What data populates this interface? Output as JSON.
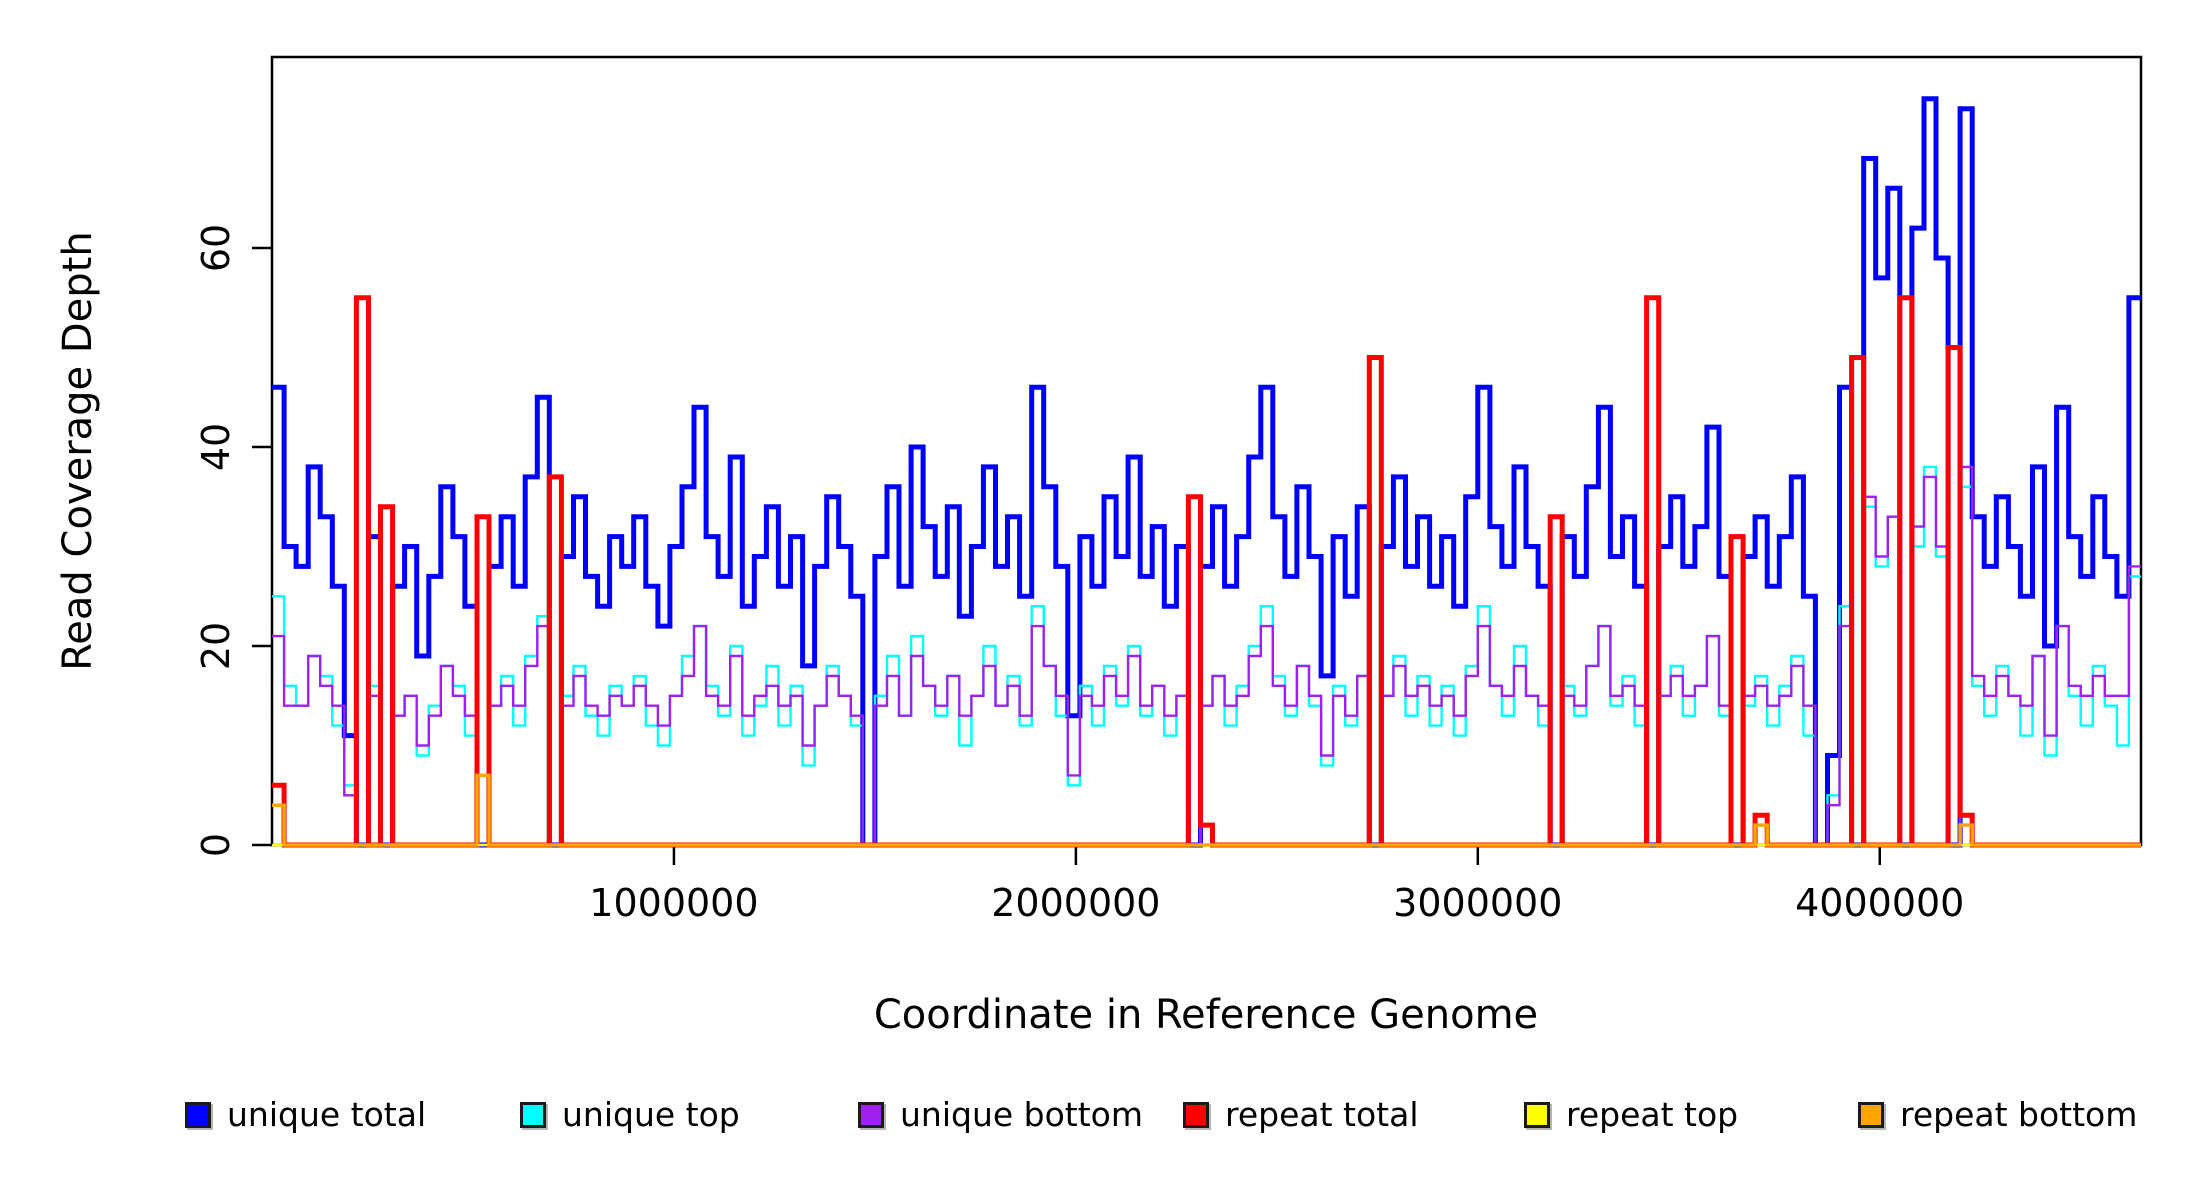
{
  "chart_data": {
    "type": "line",
    "subtype": "step-coverage-plot",
    "title": "",
    "xlabel": "Coordinate in Reference Genome",
    "ylabel": "Read Coverage Depth",
    "xlim": [
      0,
      4650000
    ],
    "ylim": [
      0,
      79.2
    ],
    "grid": "off",
    "legend_position": "bottom",
    "frame_color": "#000000",
    "background": "#ffffff",
    "ticks_x": [
      1000000,
      2000000,
      3000000,
      4000000
    ],
    "ticks_x_labels": [
      "1000000",
      "2000000",
      "3000000",
      "4000000"
    ],
    "ticks_y": [
      0,
      20,
      40,
      60
    ],
    "ticks_y_labels": [
      "0",
      "20",
      "40",
      "60"
    ],
    "x_start": 0,
    "x_step": 30000,
    "series": [
      {
        "name": "unique total",
        "color": "#0000FF",
        "line_width": 5,
        "values": [
          46,
          30,
          28,
          38,
          33,
          26,
          11,
          0,
          31,
          0,
          26,
          30,
          19,
          27,
          36,
          31,
          24,
          0,
          28,
          33,
          26,
          37,
          45,
          0,
          29,
          35,
          27,
          24,
          31,
          28,
          33,
          26,
          22,
          30,
          36,
          44,
          31,
          27,
          39,
          24,
          29,
          34,
          26,
          31,
          18,
          28,
          35,
          30,
          25,
          0,
          29,
          36,
          26,
          40,
          32,
          27,
          34,
          23,
          30,
          38,
          28,
          33,
          25,
          46,
          36,
          28,
          13,
          31,
          26,
          35,
          29,
          39,
          27,
          32,
          24,
          30,
          0,
          28,
          34,
          26,
          31,
          39,
          46,
          33,
          27,
          36,
          29,
          17,
          31,
          25,
          34,
          0,
          30,
          37,
          28,
          33,
          26,
          31,
          24,
          35,
          46,
          32,
          28,
          38,
          30,
          26,
          0,
          31,
          27,
          36,
          44,
          29,
          33,
          26,
          0,
          30,
          35,
          28,
          32,
          42,
          27,
          0,
          29,
          33,
          26,
          31,
          37,
          25,
          0,
          9,
          46,
          0,
          69,
          57,
          66,
          0,
          62,
          75,
          59,
          0,
          74,
          33,
          28,
          35,
          30,
          25,
          38,
          20,
          44,
          31,
          27,
          35,
          29,
          25,
          55
        ]
      },
      {
        "name": "unique top",
        "color": "#00FFFF",
        "line_width": 2.4,
        "values": [
          25,
          16,
          14,
          19,
          17,
          12,
          6,
          0,
          16,
          0,
          13,
          15,
          9,
          14,
          18,
          16,
          11,
          0,
          14,
          17,
          12,
          19,
          23,
          0,
          15,
          18,
          13,
          11,
          16,
          14,
          17,
          12,
          10,
          15,
          19,
          22,
          16,
          13,
          20,
          11,
          14,
          18,
          12,
          16,
          8,
          14,
          18,
          15,
          12,
          0,
          15,
          19,
          13,
          21,
          16,
          13,
          17,
          10,
          15,
          20,
          14,
          17,
          12,
          24,
          18,
          13,
          6,
          16,
          12,
          18,
          14,
          20,
          13,
          16,
          11,
          15,
          0,
          14,
          17,
          12,
          16,
          20,
          24,
          17,
          13,
          18,
          14,
          8,
          16,
          12,
          17,
          0,
          15,
          19,
          13,
          17,
          12,
          16,
          11,
          18,
          24,
          16,
          13,
          20,
          15,
          12,
          0,
          16,
          13,
          18,
          22,
          14,
          17,
          12,
          0,
          15,
          18,
          13,
          16,
          21,
          13,
          0,
          14,
          17,
          12,
          16,
          19,
          11,
          0,
          5,
          24,
          0,
          34,
          28,
          33,
          0,
          30,
          38,
          29,
          0,
          36,
          16,
          13,
          18,
          15,
          11,
          19,
          9,
          22,
          15,
          12,
          18,
          14,
          10,
          27
        ]
      },
      {
        "name": "unique bottom",
        "color": "#A020F0",
        "line_width": 2.4,
        "values": [
          21,
          14,
          14,
          19,
          16,
          14,
          5,
          0,
          15,
          0,
          13,
          15,
          10,
          13,
          18,
          15,
          13,
          0,
          14,
          16,
          14,
          18,
          22,
          0,
          14,
          17,
          14,
          13,
          15,
          14,
          16,
          14,
          12,
          15,
          17,
          22,
          15,
          14,
          19,
          13,
          15,
          16,
          14,
          15,
          10,
          14,
          17,
          15,
          13,
          0,
          14,
          17,
          13,
          19,
          16,
          14,
          17,
          13,
          15,
          18,
          14,
          16,
          13,
          22,
          18,
          15,
          7,
          15,
          14,
          17,
          15,
          19,
          14,
          16,
          13,
          15,
          0,
          14,
          17,
          14,
          15,
          19,
          22,
          16,
          14,
          18,
          15,
          9,
          15,
          13,
          17,
          0,
          15,
          18,
          15,
          16,
          14,
          15,
          13,
          17,
          22,
          16,
          15,
          18,
          15,
          14,
          0,
          15,
          14,
          18,
          22,
          15,
          16,
          14,
          0,
          15,
          17,
          15,
          16,
          21,
          14,
          0,
          15,
          16,
          14,
          15,
          18,
          14,
          0,
          4,
          22,
          0,
          35,
          29,
          33,
          0,
          32,
          37,
          30,
          0,
          38,
          17,
          15,
          17,
          15,
          14,
          19,
          11,
          22,
          16,
          15,
          17,
          15,
          15,
          28
        ]
      },
      {
        "name": "repeat total",
        "color": "#FF0000",
        "line_width": 5,
        "values": [
          6,
          0,
          0,
          0,
          0,
          0,
          0,
          55,
          0,
          34,
          0,
          0,
          0,
          0,
          0,
          0,
          0,
          33,
          0,
          0,
          0,
          0,
          0,
          37,
          0,
          0,
          0,
          0,
          0,
          0,
          0,
          0,
          0,
          0,
          0,
          0,
          0,
          0,
          0,
          0,
          0,
          0,
          0,
          0,
          0,
          0,
          0,
          0,
          0,
          0,
          0,
          0,
          0,
          0,
          0,
          0,
          0,
          0,
          0,
          0,
          0,
          0,
          0,
          0,
          0,
          0,
          0,
          0,
          0,
          0,
          0,
          0,
          0,
          0,
          0,
          0,
          35,
          2,
          0,
          0,
          0,
          0,
          0,
          0,
          0,
          0,
          0,
          0,
          0,
          0,
          0,
          49,
          0,
          0,
          0,
          0,
          0,
          0,
          0,
          0,
          0,
          0,
          0,
          0,
          0,
          0,
          33,
          0,
          0,
          0,
          0,
          0,
          0,
          0,
          55,
          0,
          0,
          0,
          0,
          0,
          0,
          31,
          0,
          3,
          0,
          0,
          0,
          0,
          0,
          0,
          0,
          49,
          0,
          0,
          0,
          55,
          0,
          0,
          0,
          50,
          3,
          0,
          0,
          0,
          0,
          0,
          0,
          0,
          0,
          0,
          0,
          0,
          0,
          0,
          0
        ]
      },
      {
        "name": "repeat top",
        "color": "#FFFF00",
        "line_width": 2.4,
        "values": [
          0,
          0,
          0,
          0,
          0,
          0,
          0,
          0,
          0,
          0,
          0,
          0,
          0,
          0,
          0,
          0,
          0,
          0,
          0,
          0,
          0,
          0,
          0,
          0,
          0,
          0,
          0,
          0,
          0,
          0,
          0,
          0,
          0,
          0,
          0,
          0,
          0,
          0,
          0,
          0,
          0,
          0,
          0,
          0,
          0,
          0,
          0,
          0,
          0,
          0,
          0,
          0,
          0,
          0,
          0,
          0,
          0,
          0,
          0,
          0,
          0,
          0,
          0,
          0,
          0,
          0,
          0,
          0,
          0,
          0,
          0,
          0,
          0,
          0,
          0,
          0,
          0,
          0,
          0,
          0,
          0,
          0,
          0,
          0,
          0,
          0,
          0,
          0,
          0,
          0,
          0,
          0,
          0,
          0,
          0,
          0,
          0,
          0,
          0,
          0,
          0,
          0,
          0,
          0,
          0,
          0,
          0,
          0,
          0,
          0,
          0,
          0,
          0,
          0,
          0,
          0,
          0,
          0,
          0,
          0,
          0,
          0,
          0,
          0,
          0,
          0,
          0,
          0,
          0,
          0,
          0,
          0,
          0,
          0,
          0,
          0,
          0,
          0,
          0,
          0,
          0,
          0,
          0,
          0,
          0,
          0,
          0,
          0,
          0,
          0,
          0,
          0,
          0,
          0,
          0
        ]
      },
      {
        "name": "repeat bottom",
        "color": "#FFA500",
        "line_width": 3.5,
        "values": [
          4,
          0,
          0,
          0,
          0,
          0,
          0,
          0,
          0,
          0,
          0,
          0,
          0,
          0,
          0,
          0,
          0,
          7,
          0,
          0,
          0,
          0,
          0,
          0,
          0,
          0,
          0,
          0,
          0,
          0,
          0,
          0,
          0,
          0,
          0,
          0,
          0,
          0,
          0,
          0,
          0,
          0,
          0,
          0,
          0,
          0,
          0,
          0,
          0,
          0,
          0,
          0,
          0,
          0,
          0,
          0,
          0,
          0,
          0,
          0,
          0,
          0,
          0,
          0,
          0,
          0,
          0,
          0,
          0,
          0,
          0,
          0,
          0,
          0,
          0,
          0,
          0,
          0,
          0,
          0,
          0,
          0,
          0,
          0,
          0,
          0,
          0,
          0,
          0,
          0,
          0,
          0,
          0,
          0,
          0,
          0,
          0,
          0,
          0,
          0,
          0,
          0,
          0,
          0,
          0,
          0,
          0,
          0,
          0,
          0,
          0,
          0,
          0,
          0,
          0,
          0,
          0,
          0,
          0,
          0,
          0,
          0,
          0,
          2,
          0,
          0,
          0,
          0,
          0,
          0,
          0,
          0,
          0,
          0,
          0,
          0,
          0,
          0,
          0,
          0,
          2,
          0,
          0,
          0,
          0,
          0,
          0,
          0,
          0,
          0,
          0,
          0,
          0,
          0,
          0
        ]
      }
    ]
  },
  "legend": {
    "swatch_border_color": "#1a1a1a",
    "items": [
      "unique total",
      "unique top",
      "unique bottom",
      "repeat total",
      "repeat top",
      "repeat bottom"
    ]
  }
}
